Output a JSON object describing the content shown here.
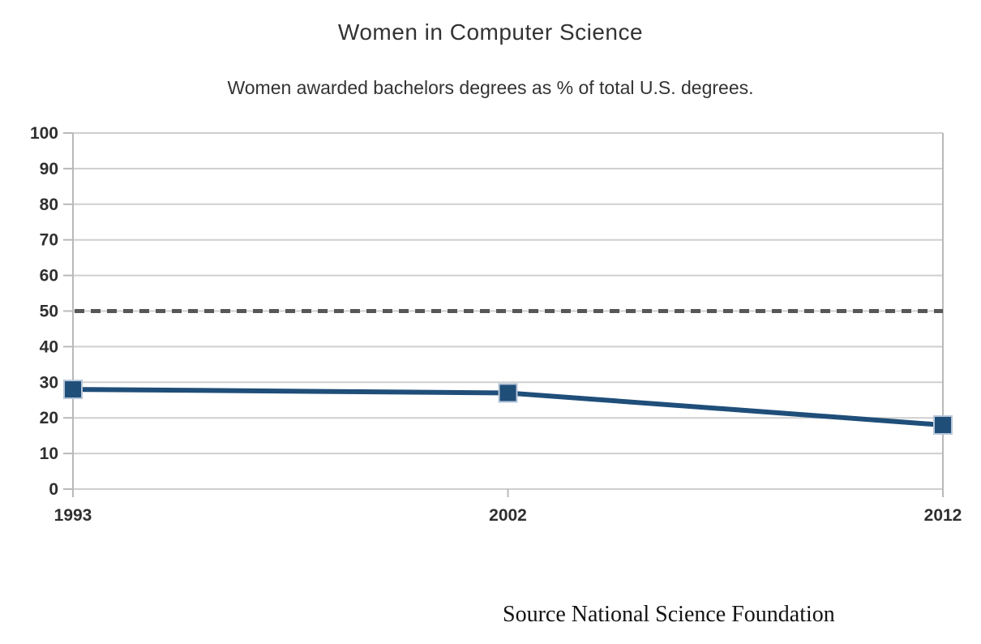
{
  "chart_data": {
    "type": "line",
    "title": "Women in Computer Science",
    "subtitle": "Women awarded bachelors degrees as % of total U.S. degrees.",
    "source_note": "Source National Science Foundation",
    "categories": [
      "1993",
      "2002",
      "2012"
    ],
    "series": [
      {
        "values": [
          28,
          27,
          18
        ],
        "color": "#1f4e79",
        "marker": "square",
        "marker_size": 22,
        "line_width": 6
      }
    ],
    "reference_line": {
      "value": 50,
      "style": "dashed",
      "color": "#575757",
      "width": 5
    },
    "ylim": [
      0,
      100
    ],
    "yticks": [
      0,
      10,
      20,
      30,
      40,
      50,
      60,
      70,
      80,
      90,
      100
    ],
    "xlabel": "",
    "ylabel": "",
    "grid": "horizontal",
    "legend": "none",
    "palette": {
      "gridline": "#cfcfcf",
      "axis": "#b9b9b9",
      "tick_text": "#2f2f2f",
      "background": "#ffffff"
    }
  }
}
